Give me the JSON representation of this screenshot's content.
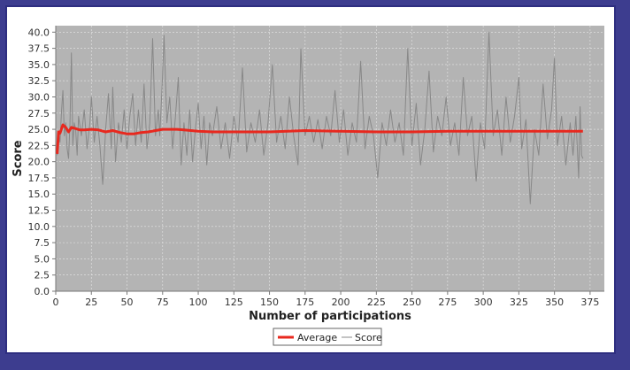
{
  "chart_data": {
    "type": "line",
    "title": "",
    "xlabel": "Number of participations",
    "ylabel": "Score",
    "xlim": [
      0,
      385
    ],
    "ylim": [
      0,
      41
    ],
    "x_ticks": [
      0,
      25,
      50,
      75,
      100,
      125,
      150,
      175,
      200,
      225,
      250,
      275,
      300,
      325,
      350,
      375
    ],
    "y_ticks": [
      0.0,
      2.5,
      5.0,
      7.5,
      10.0,
      12.5,
      15.0,
      17.5,
      20.0,
      22.5,
      25.0,
      27.5,
      30.0,
      32.5,
      35.0,
      37.5,
      40.0
    ],
    "grid": true,
    "legend_position": "bottom-center",
    "series": [
      {
        "name": "Average",
        "color": "#e8281e",
        "points": [
          [
            1,
            21.2
          ],
          [
            2,
            24.6
          ],
          [
            3,
            24.4
          ],
          [
            5,
            25.7
          ],
          [
            7,
            25.3
          ],
          [
            9,
            24.6
          ],
          [
            11,
            25.3
          ],
          [
            14,
            25.1
          ],
          [
            17,
            24.9
          ],
          [
            20,
            24.9
          ],
          [
            25,
            25.0
          ],
          [
            30,
            24.9
          ],
          [
            35,
            24.6
          ],
          [
            40,
            24.8
          ],
          [
            45,
            24.5
          ],
          [
            50,
            24.3
          ],
          [
            55,
            24.3
          ],
          [
            60,
            24.5
          ],
          [
            65,
            24.6
          ],
          [
            70,
            24.8
          ],
          [
            75,
            25.0
          ],
          [
            80,
            25.0
          ],
          [
            85,
            25.0
          ],
          [
            90,
            24.9
          ],
          [
            100,
            24.7
          ],
          [
            110,
            24.6
          ],
          [
            125,
            24.6
          ],
          [
            150,
            24.6
          ],
          [
            175,
            24.8
          ],
          [
            200,
            24.7
          ],
          [
            225,
            24.6
          ],
          [
            250,
            24.6
          ],
          [
            275,
            24.7
          ],
          [
            300,
            24.7
          ],
          [
            325,
            24.7
          ],
          [
            350,
            24.7
          ],
          [
            370,
            24.7
          ]
        ]
      },
      {
        "name": "Score",
        "color": "#888888",
        "points": [
          [
            1,
            21.0
          ],
          [
            2,
            24.5
          ],
          [
            3,
            23.0
          ],
          [
            4,
            27.5
          ],
          [
            5,
            31.0
          ],
          [
            6,
            24.0
          ],
          [
            7,
            26.0
          ],
          [
            8,
            22.0
          ],
          [
            9,
            20.5
          ],
          [
            10,
            26.0
          ],
          [
            11,
            36.8
          ],
          [
            12,
            22.5
          ],
          [
            13,
            26.0
          ],
          [
            14,
            25.0
          ],
          [
            15,
            21.0
          ],
          [
            16,
            27.0
          ],
          [
            18,
            24.0
          ],
          [
            20,
            28.0
          ],
          [
            22,
            22.0
          ],
          [
            24,
            26.0
          ],
          [
            25,
            30.0
          ],
          [
            27,
            23.0
          ],
          [
            29,
            27.0
          ],
          [
            31,
            22.5
          ],
          [
            33,
            16.5
          ],
          [
            35,
            25.0
          ],
          [
            37,
            30.5
          ],
          [
            39,
            22.0
          ],
          [
            40,
            31.5
          ],
          [
            42,
            20.0
          ],
          [
            44,
            26.0
          ],
          [
            46,
            23.0
          ],
          [
            48,
            28.0
          ],
          [
            50,
            22.0
          ],
          [
            52,
            27.0
          ],
          [
            54,
            30.5
          ],
          [
            56,
            22.5
          ],
          [
            58,
            28.0
          ],
          [
            60,
            23.0
          ],
          [
            62,
            32.0
          ],
          [
            64,
            22.0
          ],
          [
            66,
            26.0
          ],
          [
            68,
            39.0
          ],
          [
            70,
            24.0
          ],
          [
            72,
            28.0
          ],
          [
            73,
            24.0
          ],
          [
            75,
            33.5
          ],
          [
            76,
            39.5
          ],
          [
            78,
            26.0
          ],
          [
            80,
            30.0
          ],
          [
            82,
            22.0
          ],
          [
            84,
            27.0
          ],
          [
            86,
            33.0
          ],
          [
            88,
            19.5
          ],
          [
            90,
            26.0
          ],
          [
            92,
            21.0
          ],
          [
            94,
            28.0
          ],
          [
            96,
            20.0
          ],
          [
            98,
            25.0
          ],
          [
            100,
            29.0
          ],
          [
            102,
            22.0
          ],
          [
            104,
            27.0
          ],
          [
            106,
            19.5
          ],
          [
            108,
            26.0
          ],
          [
            110,
            24.0
          ],
          [
            113,
            28.5
          ],
          [
            116,
            22.0
          ],
          [
            119,
            26.0
          ],
          [
            122,
            20.5
          ],
          [
            125,
            27.0
          ],
          [
            128,
            23.0
          ],
          [
            131,
            34.5
          ],
          [
            134,
            21.5
          ],
          [
            137,
            26.0
          ],
          [
            140,
            23.0
          ],
          [
            143,
            28.0
          ],
          [
            146,
            21.0
          ],
          [
            149,
            26.0
          ],
          [
            152,
            35.0
          ],
          [
            155,
            23.0
          ],
          [
            158,
            27.0
          ],
          [
            161,
            22.0
          ],
          [
            164,
            30.0
          ],
          [
            167,
            24.0
          ],
          [
            170,
            19.5
          ],
          [
            172,
            37.5
          ],
          [
            175,
            24.0
          ],
          [
            178,
            27.0
          ],
          [
            181,
            23.0
          ],
          [
            184,
            26.5
          ],
          [
            187,
            22.0
          ],
          [
            190,
            27.0
          ],
          [
            193,
            24.0
          ],
          [
            196,
            31.0
          ],
          [
            199,
            23.0
          ],
          [
            202,
            28.0
          ],
          [
            205,
            21.0
          ],
          [
            208,
            26.0
          ],
          [
            211,
            23.0
          ],
          [
            214,
            35.5
          ],
          [
            217,
            22.0
          ],
          [
            220,
            27.0
          ],
          [
            223,
            24.0
          ],
          [
            226,
            17.5
          ],
          [
            229,
            26.0
          ],
          [
            232,
            22.5
          ],
          [
            235,
            28.0
          ],
          [
            238,
            23.0
          ],
          [
            241,
            26.0
          ],
          [
            244,
            21.0
          ],
          [
            247,
            37.5
          ],
          [
            250,
            22.5
          ],
          [
            253,
            29.0
          ],
          [
            256,
            19.5
          ],
          [
            259,
            25.0
          ],
          [
            262,
            34.0
          ],
          [
            265,
            21.5
          ],
          [
            268,
            27.0
          ],
          [
            271,
            24.0
          ],
          [
            274,
            30.0
          ],
          [
            277,
            22.5
          ],
          [
            280,
            26.0
          ],
          [
            283,
            21.0
          ],
          [
            286,
            33.0
          ],
          [
            289,
            24.0
          ],
          [
            292,
            27.0
          ],
          [
            295,
            17.0
          ],
          [
            298,
            26.0
          ],
          [
            301,
            22.0
          ],
          [
            304,
            40.0
          ],
          [
            307,
            24.0
          ],
          [
            310,
            28.0
          ],
          [
            313,
            21.0
          ],
          [
            316,
            30.0
          ],
          [
            319,
            23.0
          ],
          [
            322,
            27.0
          ],
          [
            325,
            33.0
          ],
          [
            327,
            22.0
          ],
          [
            330,
            26.5
          ],
          [
            333,
            13.5
          ],
          [
            336,
            25.0
          ],
          [
            339,
            21.0
          ],
          [
            342,
            32.0
          ],
          [
            345,
            23.5
          ],
          [
            348,
            28.0
          ],
          [
            350,
            36.0
          ],
          [
            352,
            22.5
          ],
          [
            355,
            27.0
          ],
          [
            358,
            19.5
          ],
          [
            361,
            26.0
          ],
          [
            363,
            21.0
          ],
          [
            365,
            27.0
          ],
          [
            367,
            17.5
          ],
          [
            368,
            28.5
          ],
          [
            369,
            21.0
          ],
          [
            370,
            20.5
          ]
        ]
      }
    ]
  },
  "legend": {
    "items": [
      {
        "label": "Average",
        "color": "#e8281e"
      },
      {
        "label": "Score",
        "color": "#888888"
      }
    ]
  },
  "colors": {
    "plot_background": "#b4b4b4",
    "grid": "#e6e6e6",
    "page_background": "#3d3d8f"
  }
}
